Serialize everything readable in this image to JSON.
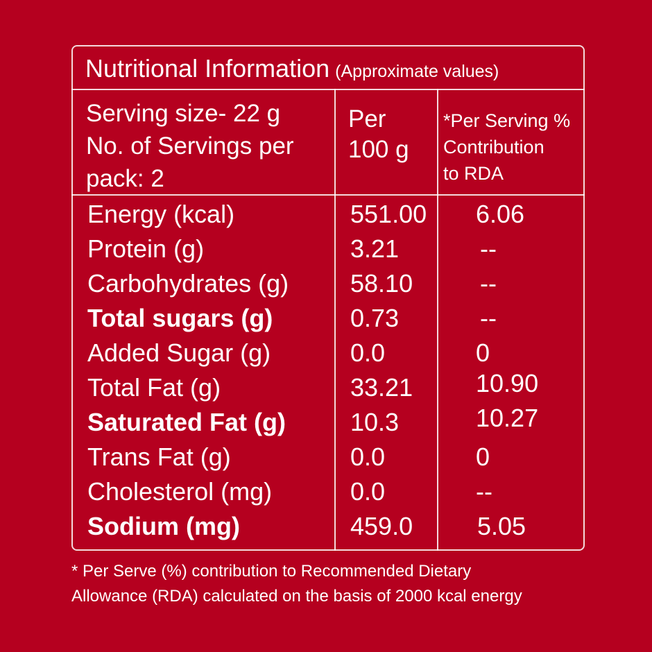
{
  "title": "Nutritional Information",
  "title_note": "(Approximate values)",
  "serving": {
    "line1": "Serving size- 22 g",
    "line2": "No. of Servings per",
    "line3": "pack: 2"
  },
  "columns": {
    "per_100": [
      "Per",
      "100 g"
    ],
    "rda": [
      "*Per Serving %",
      "Contribution",
      "to RDA"
    ]
  },
  "rows": [
    {
      "name": "Energy (kcal)",
      "per100": "551.00",
      "rda": "6.06"
    },
    {
      "name": "Protein (g)",
      "per100": "3.21",
      "rda": "--"
    },
    {
      "name": "Carbohydrates (g)",
      "per100": "58.10",
      "rda": "--"
    },
    {
      "name": "Total sugars (g)",
      "per100": "0.73",
      "rda": "--"
    },
    {
      "name": "Added Sugar (g)",
      "per100": "0.0",
      "rda": "0"
    },
    {
      "name": "Total Fat (g)",
      "per100": "33.21",
      "rda": "10.90"
    },
    {
      "name": "Saturated Fat (g)",
      "per100": "10.3",
      "rda": "10.27"
    },
    {
      "name": "Trans Fat (g)",
      "per100": "0.0",
      "rda": "0"
    },
    {
      "name": "Cholesterol (mg)",
      "per100": "0.0",
      "rda": "--"
    },
    {
      "name": "Sodium (mg)",
      "per100": "459.0",
      "rda": "5.05"
    }
  ],
  "footnote": {
    "line1": "* Per Serve (%) contribution to Recommended Dietary",
    "line2": "Allowance (RDA) calculated on the basis of 2000 kcal energy"
  },
  "colors": {
    "background": "#b5001f",
    "text": "#ffffff"
  }
}
